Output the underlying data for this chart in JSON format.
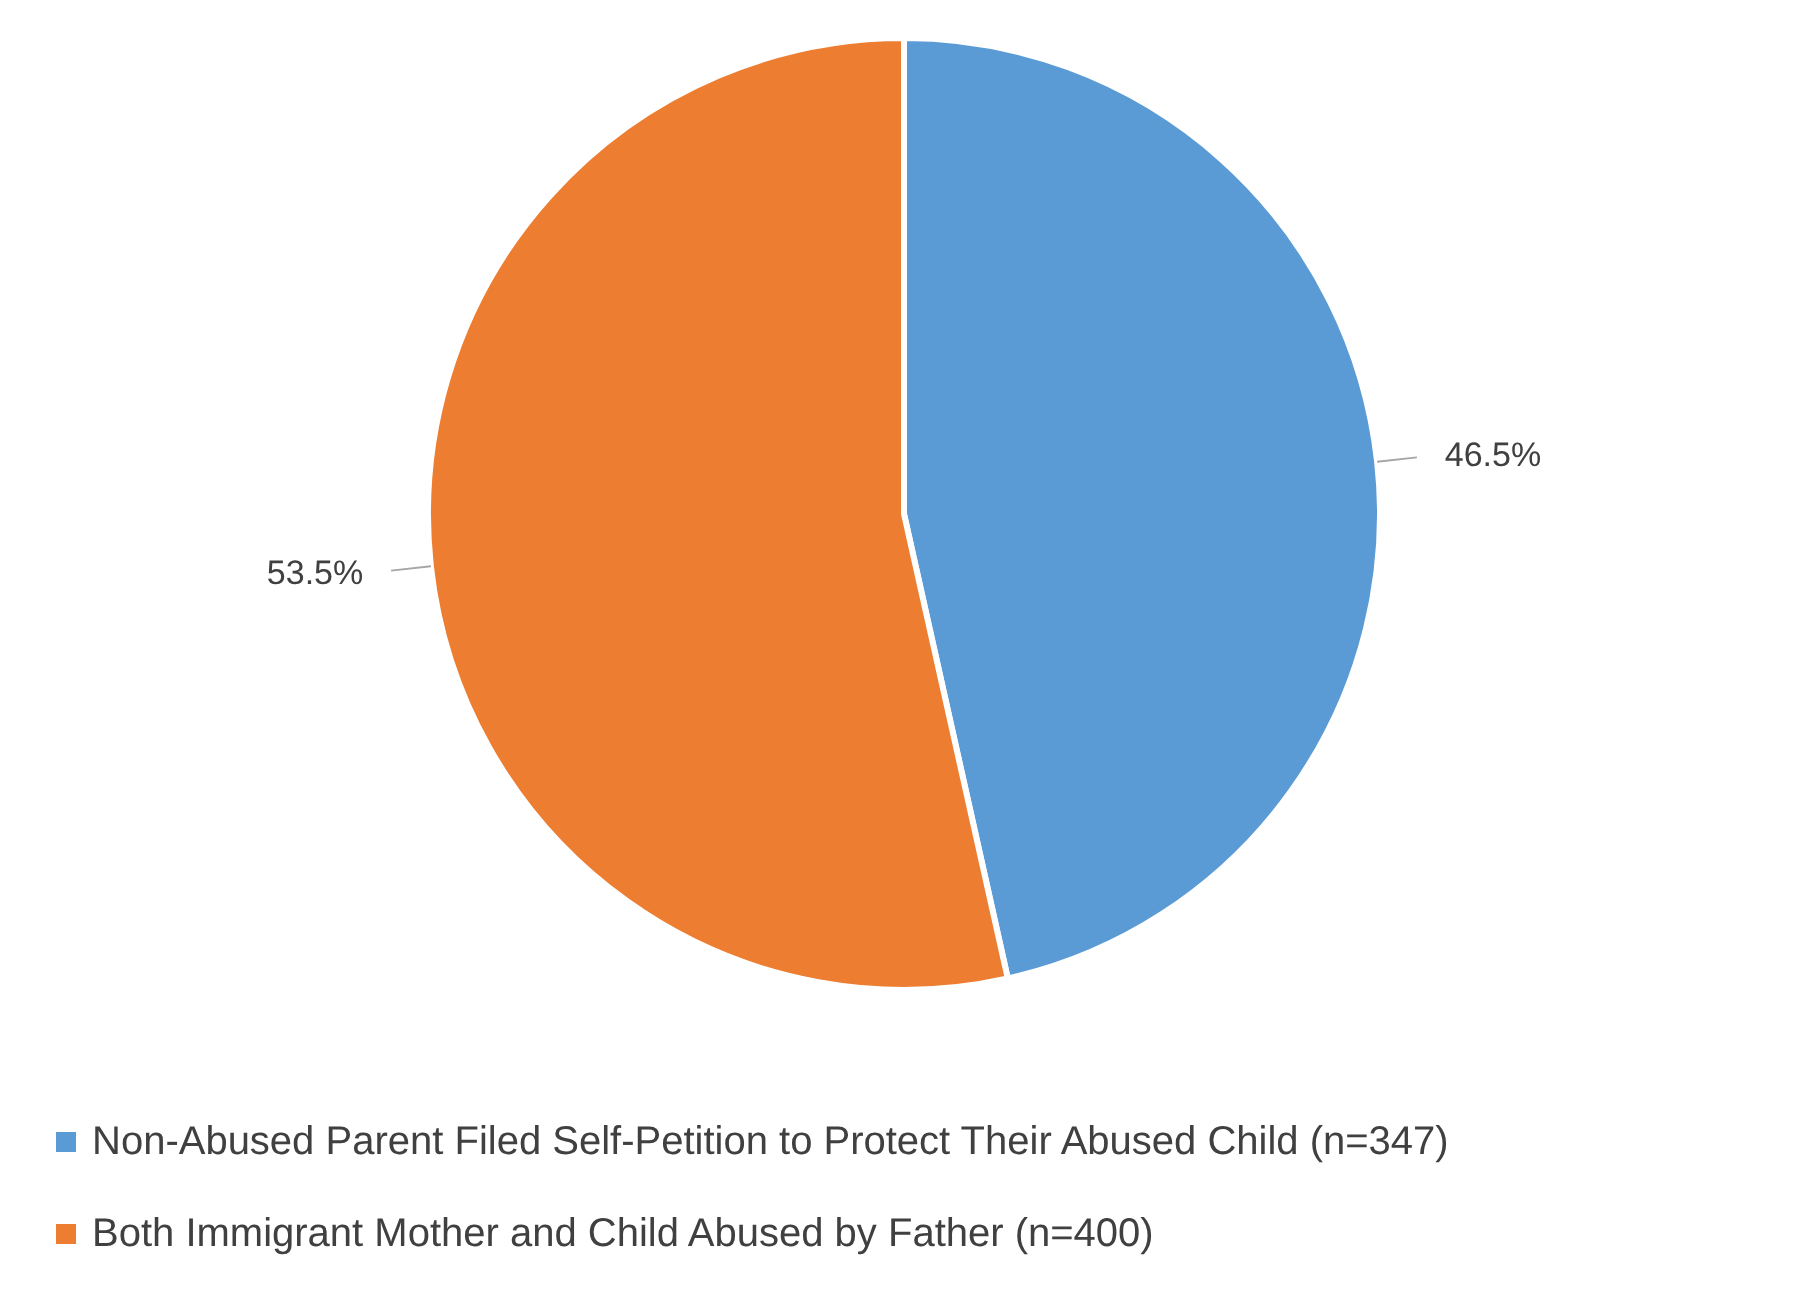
{
  "chart_data": {
    "type": "pie",
    "categories": [
      "Non-Abused Parent Filed Self-Petition to Protect Their Abused Child (n=347)",
      "Both Immigrant Mother and Child Abused by Father (n=400)"
    ],
    "values": [
      46.5,
      53.5
    ],
    "value_labels": [
      "46.5%",
      "53.5%"
    ],
    "colors": [
      "#5b9bd5",
      "#ed7d31"
    ],
    "legend": "bottom"
  }
}
